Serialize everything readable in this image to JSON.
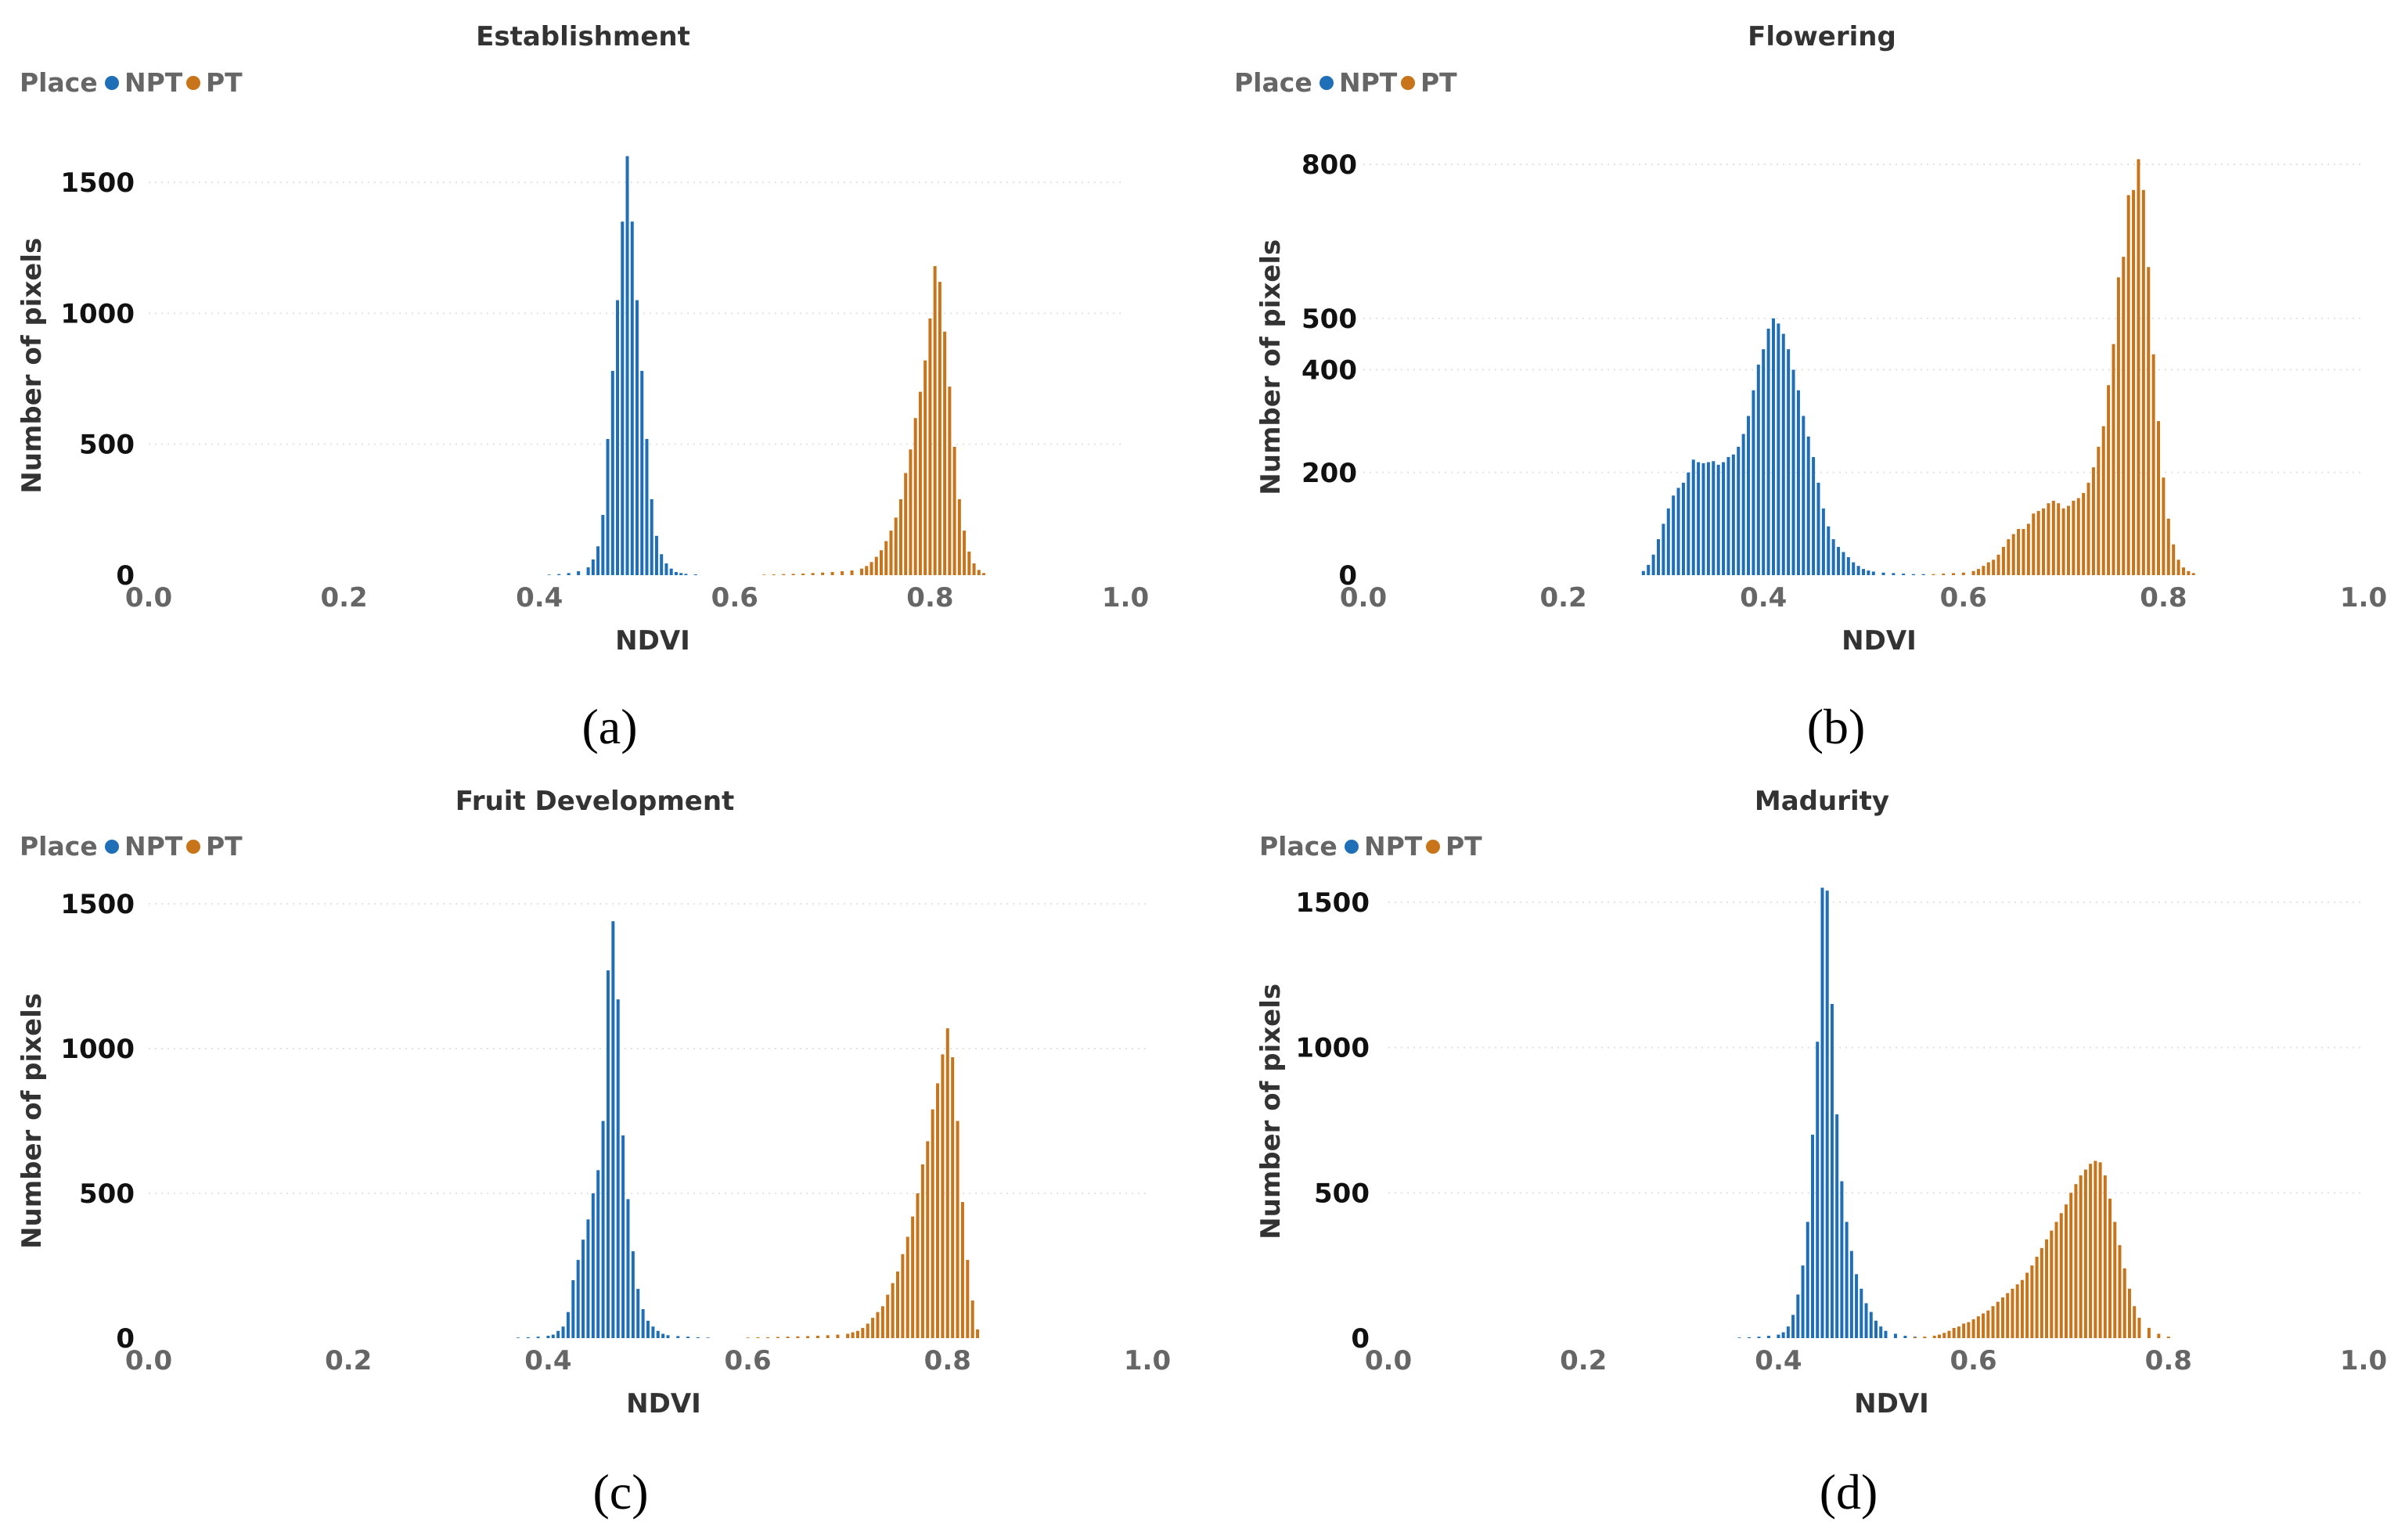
{
  "figure": {
    "legend_title": "Place",
    "colors": {
      "NPT": "#1F6FB8",
      "PT": "#C8741A"
    }
  },
  "chart_data": [
    {
      "type": "bar",
      "title": "Establishment",
      "caption": "(a)",
      "xlabel": "NDVI",
      "ylabel": "Number of pixels",
      "xlim": [
        0.0,
        1.0
      ],
      "ylim": [
        0,
        1600
      ],
      "xticks": [
        "0.0",
        "0.2",
        "0.4",
        "0.6",
        "0.8",
        "1.0"
      ],
      "yticks": [
        "0",
        "500",
        "1000",
        "1500"
      ],
      "legend_position": "top-left",
      "grid": true,
      "series": [
        {
          "name": "NPT",
          "x": [
            0.41,
            0.42,
            0.43,
            0.44,
            0.45,
            0.455,
            0.46,
            0.465,
            0.47,
            0.475,
            0.48,
            0.485,
            0.49,
            0.495,
            0.5,
            0.505,
            0.51,
            0.515,
            0.52,
            0.525,
            0.53,
            0.535,
            0.54,
            0.545,
            0.55,
            0.56
          ],
          "values": [
            2,
            4,
            8,
            15,
            30,
            60,
            110,
            230,
            520,
            780,
            1050,
            1350,
            1600,
            1350,
            1050,
            780,
            520,
            290,
            150,
            80,
            45,
            25,
            12,
            8,
            5,
            3
          ]
        },
        {
          "name": "PT",
          "x": [
            0.63,
            0.64,
            0.65,
            0.66,
            0.67,
            0.68,
            0.69,
            0.7,
            0.71,
            0.72,
            0.73,
            0.735,
            0.74,
            0.745,
            0.75,
            0.755,
            0.76,
            0.765,
            0.77,
            0.775,
            0.78,
            0.785,
            0.79,
            0.795,
            0.8,
            0.805,
            0.81,
            0.815,
            0.82,
            0.825,
            0.83,
            0.835,
            0.84,
            0.845,
            0.85,
            0.855
          ],
          "values": [
            2,
            3,
            4,
            5,
            6,
            8,
            10,
            12,
            15,
            18,
            25,
            35,
            50,
            70,
            95,
            130,
            170,
            220,
            290,
            390,
            480,
            600,
            700,
            820,
            980,
            1180,
            1120,
            930,
            720,
            490,
            290,
            170,
            90,
            45,
            20,
            8
          ]
        }
      ]
    },
    {
      "type": "bar",
      "title": "Flowering",
      "caption": "(b)",
      "xlabel": "NDVI",
      "ylabel": "Number of pixels",
      "xlim": [
        0.0,
        1.0
      ],
      "ylim": [
        0,
        810
      ],
      "xticks": [
        "0.0",
        "0.2",
        "0.4",
        "0.6",
        "0.8",
        "1.0"
      ],
      "yticks": [
        "0",
        "200",
        "400",
        "500",
        "800"
      ],
      "legend_position": "top-left",
      "grid": true,
      "series": [
        {
          "name": "NPT",
          "x": [
            0.28,
            0.285,
            0.29,
            0.295,
            0.3,
            0.305,
            0.31,
            0.315,
            0.32,
            0.325,
            0.33,
            0.335,
            0.34,
            0.345,
            0.35,
            0.355,
            0.36,
            0.365,
            0.37,
            0.375,
            0.38,
            0.385,
            0.39,
            0.395,
            0.4,
            0.405,
            0.41,
            0.415,
            0.42,
            0.425,
            0.43,
            0.435,
            0.44,
            0.445,
            0.45,
            0.455,
            0.46,
            0.465,
            0.47,
            0.475,
            0.48,
            0.485,
            0.49,
            0.495,
            0.5,
            0.505,
            0.51,
            0.52,
            0.53,
            0.54,
            0.55,
            0.56
          ],
          "values": [
            8,
            20,
            40,
            70,
            100,
            130,
            155,
            170,
            180,
            200,
            225,
            220,
            218,
            220,
            222,
            215,
            220,
            230,
            235,
            250,
            275,
            310,
            360,
            410,
            440,
            480,
            500,
            490,
            470,
            440,
            400,
            360,
            310,
            270,
            230,
            180,
            130,
            95,
            70,
            55,
            45,
            35,
            25,
            18,
            12,
            9,
            7,
            5,
            4,
            3,
            2,
            2
          ]
        },
        {
          "name": "PT",
          "x": [
            0.57,
            0.58,
            0.59,
            0.6,
            0.61,
            0.615,
            0.62,
            0.625,
            0.63,
            0.635,
            0.64,
            0.645,
            0.65,
            0.655,
            0.66,
            0.665,
            0.67,
            0.675,
            0.68,
            0.685,
            0.69,
            0.695,
            0.7,
            0.705,
            0.71,
            0.715,
            0.72,
            0.725,
            0.73,
            0.735,
            0.74,
            0.745,
            0.75,
            0.755,
            0.76,
            0.765,
            0.77,
            0.775,
            0.78,
            0.785,
            0.79,
            0.795,
            0.8,
            0.805,
            0.81,
            0.815,
            0.82,
            0.825,
            0.83
          ],
          "values": [
            2,
            3,
            4,
            5,
            8,
            12,
            18,
            25,
            30,
            40,
            55,
            70,
            80,
            90,
            90,
            100,
            120,
            125,
            130,
            140,
            145,
            140,
            130,
            135,
            145,
            150,
            160,
            180,
            210,
            250,
            290,
            370,
            450,
            580,
            620,
            740,
            750,
            810,
            750,
            600,
            430,
            300,
            190,
            110,
            60,
            30,
            15,
            8,
            4
          ]
        }
      ]
    },
    {
      "type": "bar",
      "title": "Fruit Development",
      "caption": "(c)",
      "xlabel": "NDVI",
      "ylabel": "Number of pixels",
      "xlim": [
        0.0,
        1.0
      ],
      "ylim": [
        0,
        1500
      ],
      "xticks": [
        "0.0",
        "0.2",
        "0.4",
        "0.6",
        "0.8",
        "1.0"
      ],
      "yticks": [
        "0",
        "500",
        "1000",
        "1500"
      ],
      "legend_position": "top-left",
      "grid": true,
      "series": [
        {
          "name": "NPT",
          "x": [
            0.37,
            0.38,
            0.39,
            0.4,
            0.405,
            0.41,
            0.415,
            0.42,
            0.425,
            0.43,
            0.435,
            0.44,
            0.445,
            0.45,
            0.455,
            0.46,
            0.465,
            0.47,
            0.475,
            0.48,
            0.485,
            0.49,
            0.495,
            0.5,
            0.505,
            0.51,
            0.515,
            0.52,
            0.53,
            0.54,
            0.55,
            0.56
          ],
          "values": [
            2,
            3,
            5,
            8,
            12,
            25,
            40,
            90,
            200,
            270,
            340,
            410,
            500,
            580,
            750,
            1270,
            1440,
            1170,
            700,
            480,
            300,
            170,
            100,
            60,
            40,
            25,
            15,
            10,
            7,
            5,
            3,
            2
          ]
        },
        {
          "name": "PT",
          "x": [
            0.6,
            0.61,
            0.62,
            0.63,
            0.64,
            0.65,
            0.66,
            0.67,
            0.68,
            0.69,
            0.7,
            0.705,
            0.71,
            0.715,
            0.72,
            0.725,
            0.73,
            0.735,
            0.74,
            0.745,
            0.75,
            0.755,
            0.76,
            0.765,
            0.77,
            0.775,
            0.78,
            0.785,
            0.79,
            0.795,
            0.8,
            0.805,
            0.81,
            0.815,
            0.82,
            0.825,
            0.83
          ],
          "values": [
            2,
            3,
            3,
            4,
            5,
            6,
            7,
            8,
            10,
            12,
            15,
            20,
            25,
            35,
            50,
            70,
            90,
            110,
            150,
            190,
            230,
            290,
            350,
            420,
            500,
            600,
            680,
            790,
            880,
            980,
            1070,
            970,
            750,
            470,
            270,
            130,
            30
          ]
        }
      ]
    },
    {
      "type": "bar",
      "title": "Madurity",
      "caption": "(d)",
      "xlabel": "NDVI",
      "ylabel": "Number of pixels",
      "xlim": [
        0.0,
        1.0
      ],
      "ylim": [
        0,
        1560
      ],
      "xticks": [
        "0.0",
        "0.2",
        "0.4",
        "0.6",
        "0.8",
        "1.0"
      ],
      "yticks": [
        "0",
        "500",
        "1000",
        "1500"
      ],
      "legend_position": "top-left",
      "grid": true,
      "series": [
        {
          "name": "NPT",
          "x": [
            0.36,
            0.37,
            0.38,
            0.39,
            0.4,
            0.405,
            0.41,
            0.415,
            0.42,
            0.425,
            0.43,
            0.435,
            0.44,
            0.445,
            0.45,
            0.455,
            0.46,
            0.465,
            0.47,
            0.475,
            0.48,
            0.485,
            0.49,
            0.495,
            0.5,
            0.505,
            0.51,
            0.52,
            0.53,
            0.54
          ],
          "values": [
            2,
            3,
            5,
            8,
            12,
            20,
            40,
            80,
            150,
            250,
            400,
            700,
            1020,
            1550,
            1540,
            1150,
            770,
            540,
            400,
            300,
            220,
            170,
            120,
            90,
            60,
            40,
            25,
            15,
            8,
            5
          ]
        },
        {
          "name": "PT",
          "x": [
            0.54,
            0.55,
            0.56,
            0.565,
            0.57,
            0.575,
            0.58,
            0.585,
            0.59,
            0.595,
            0.6,
            0.605,
            0.61,
            0.615,
            0.62,
            0.625,
            0.63,
            0.635,
            0.64,
            0.645,
            0.65,
            0.655,
            0.66,
            0.665,
            0.67,
            0.675,
            0.68,
            0.685,
            0.69,
            0.695,
            0.7,
            0.705,
            0.71,
            0.715,
            0.72,
            0.725,
            0.73,
            0.735,
            0.74,
            0.745,
            0.75,
            0.755,
            0.76,
            0.765,
            0.77,
            0.78,
            0.79,
            0.8
          ],
          "values": [
            3,
            5,
            8,
            12,
            18,
            25,
            35,
            40,
            50,
            55,
            65,
            75,
            85,
            95,
            110,
            125,
            140,
            155,
            170,
            185,
            200,
            225,
            250,
            280,
            310,
            340,
            370,
            400,
            430,
            460,
            500,
            530,
            560,
            580,
            600,
            610,
            605,
            560,
            480,
            400,
            320,
            240,
            170,
            110,
            70,
            35,
            15,
            5
          ]
        }
      ]
    }
  ]
}
